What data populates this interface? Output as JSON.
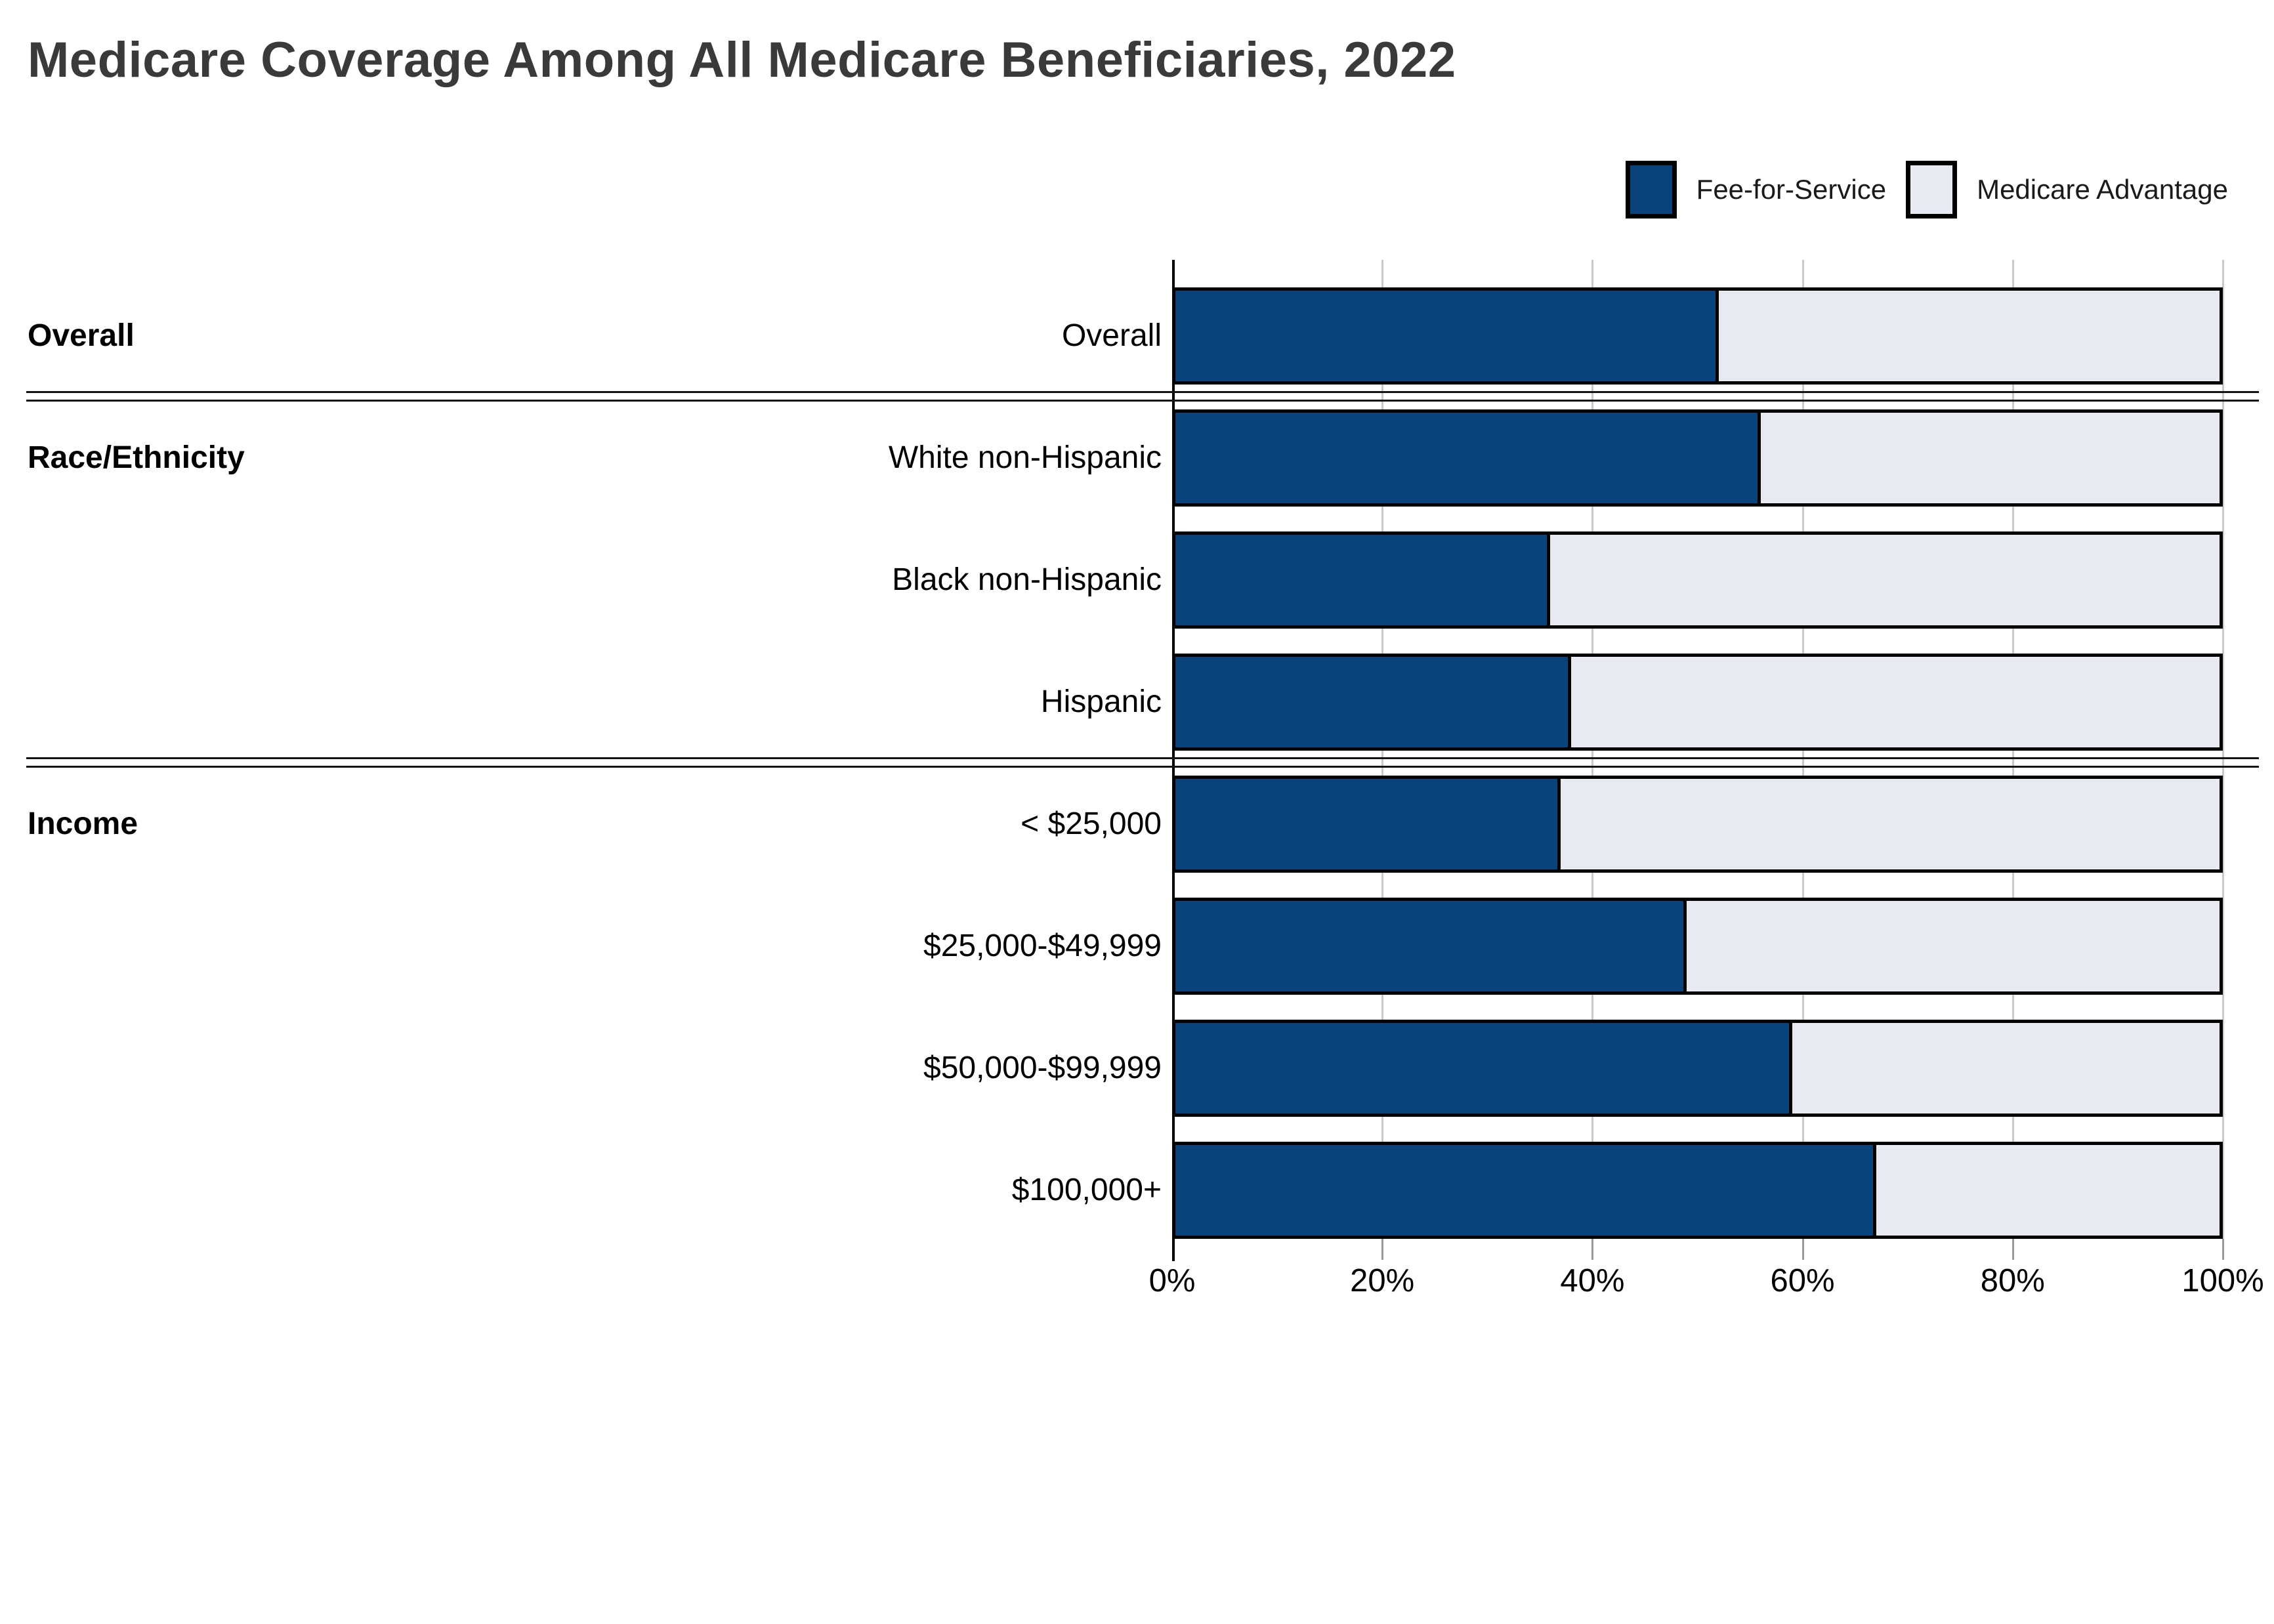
{
  "title": "Medicare Coverage Among All Medicare Beneficiaries, 2022",
  "legend": [
    {
      "label": "Fee-for-Service",
      "color": "#0a437c"
    },
    {
      "label": "Medicare Advantage",
      "color": "#e7eaf1"
    }
  ],
  "colors": {
    "fee_for_service": "#0a437c",
    "medicare_advantage": "#e7eaf1",
    "bar_border": "#000000",
    "gridline": "#c9c9c9",
    "axis_line": "#000000",
    "title_text": "#3a3a3a"
  },
  "chart_data": {
    "type": "bar",
    "orientation": "horizontal",
    "stacked": true,
    "title": "Medicare Coverage Among All Medicare Beneficiaries, 2022",
    "categories": [
      "Overall",
      "White non-Hispanic",
      "Black non-Hispanic",
      "Hispanic",
      "< $25,000",
      "$25,000-$49,999",
      "$50,000-$99,999",
      "$100,000+"
    ],
    "group_labels": [
      {
        "label": "Overall",
        "rows": [
          0
        ]
      },
      {
        "label": "Race/Ethnicity",
        "rows": [
          1,
          2,
          3
        ]
      },
      {
        "label": "Income",
        "rows": [
          4,
          5,
          6,
          7
        ]
      }
    ],
    "series": [
      {
        "name": "Fee-for-Service",
        "color": "#0a437c",
        "values": [
          52,
          56,
          36,
          38,
          37,
          49,
          59,
          67
        ]
      },
      {
        "name": "Medicare Advantage",
        "color": "#e7eaf1",
        "values": [
          48,
          44,
          64,
          62,
          63,
          51,
          41,
          33
        ]
      }
    ],
    "xlabel": "",
    "ylabel": "",
    "xlim": [
      0,
      100
    ],
    "x_ticks": [
      "0%",
      "20%",
      "40%",
      "60%",
      "80%",
      "100%"
    ],
    "x_tick_values": [
      0,
      20,
      40,
      60,
      80,
      100
    ],
    "grid": true,
    "legend_position": "top-right"
  }
}
